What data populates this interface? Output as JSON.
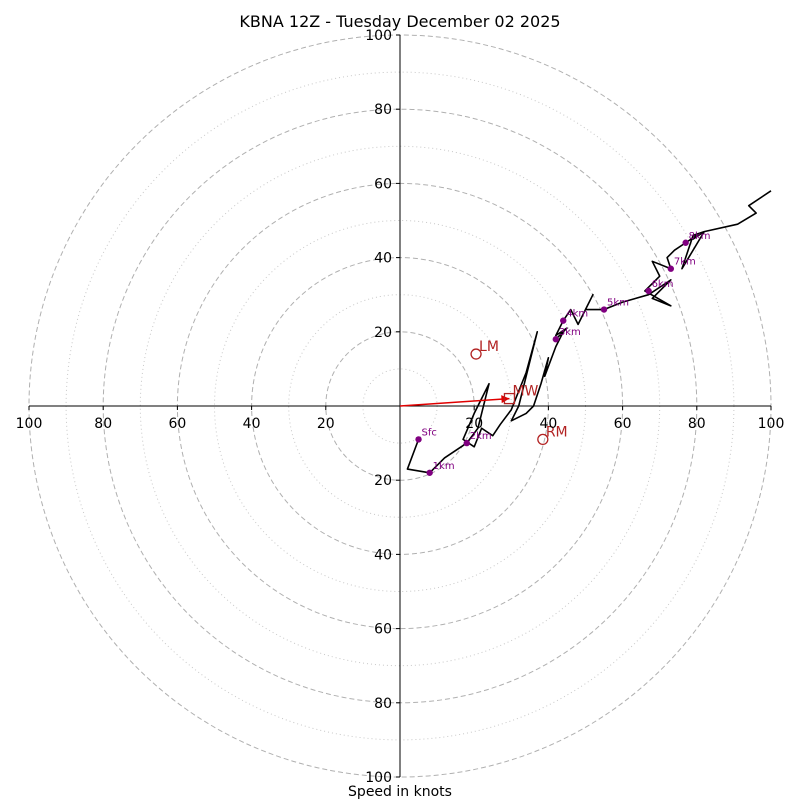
{
  "chart_data": {
    "type": "hodograph",
    "title": "KBNA 12Z - Tuesday December 02 2025",
    "xlabel": "Speed in knots",
    "units": "knots",
    "range": [
      -100,
      100
    ],
    "rings_major": [
      20,
      40,
      60,
      80,
      100
    ],
    "rings_minor": [
      10,
      30,
      50,
      70,
      90
    ],
    "x_tick_labels": [
      "100",
      "80",
      "60",
      "40",
      "20",
      "20",
      "40",
      "60",
      "80",
      "100"
    ],
    "y_tick_labels": [
      "100",
      "80",
      "60",
      "40",
      "20",
      "20",
      "40",
      "60",
      "80",
      "100"
    ],
    "colors": {
      "trace": "#000000",
      "heights": "#800080",
      "motion": "#b22222",
      "mean_wind": "#e00000",
      "grid": "#b0b0b0"
    },
    "trace": [
      [
        5,
        -9
      ],
      [
        2,
        -17
      ],
      [
        8,
        -18
      ],
      [
        12,
        -14
      ],
      [
        18,
        -10
      ],
      [
        21,
        -6
      ],
      [
        24,
        6
      ],
      [
        20,
        -2
      ],
      [
        17,
        -9
      ],
      [
        20,
        -11
      ],
      [
        22,
        -6
      ],
      [
        25,
        -8
      ],
      [
        27,
        -5
      ],
      [
        30,
        -1
      ],
      [
        34,
        9
      ],
      [
        37,
        20
      ],
      [
        32,
        0
      ],
      [
        30,
        -4
      ],
      [
        34,
        -2
      ],
      [
        36,
        0
      ],
      [
        38,
        6
      ],
      [
        40,
        13
      ],
      [
        39,
        8
      ],
      [
        42,
        16
      ],
      [
        44,
        20
      ],
      [
        42,
        18
      ],
      [
        45,
        21
      ],
      [
        42,
        19
      ],
      [
        44,
        23
      ],
      [
        46,
        26
      ],
      [
        48,
        22
      ],
      [
        52,
        30
      ],
      [
        50,
        26
      ],
      [
        55,
        26
      ],
      [
        60,
        28
      ],
      [
        67,
        30
      ],
      [
        73,
        34
      ],
      [
        68,
        29
      ],
      [
        73,
        27
      ],
      [
        66,
        31
      ],
      [
        70,
        35
      ],
      [
        68,
        39
      ],
      [
        73,
        37
      ],
      [
        72,
        40
      ],
      [
        74,
        42
      ],
      [
        77,
        44
      ],
      [
        80,
        46
      ],
      [
        79,
        45
      ],
      [
        82,
        47
      ],
      [
        79,
        46
      ],
      [
        76,
        37
      ],
      [
        82,
        47
      ],
      [
        91,
        49
      ],
      [
        96,
        52
      ],
      [
        94,
        54
      ],
      [
        100,
        58
      ]
    ],
    "heights": [
      {
        "label": "Sfc",
        "u": 5,
        "v": -9
      },
      {
        "label": "1km",
        "u": 8,
        "v": -18
      },
      {
        "label": "2km",
        "u": 18,
        "v": -10
      },
      {
        "label": "3km",
        "u": 42,
        "v": 18
      },
      {
        "label": "4km",
        "u": 44,
        "v": 23
      },
      {
        "label": "5km",
        "u": 55,
        "v": 26
      },
      {
        "label": "6km",
        "u": 67,
        "v": 31
      },
      {
        "label": "7km",
        "u": 73,
        "v": 37
      },
      {
        "label": "8km",
        "u": 77,
        "v": 44
      }
    ],
    "motions": [
      {
        "label": "LM",
        "u": 20.5,
        "v": 14,
        "shape": "circle"
      },
      {
        "label": "RM",
        "u": 38.5,
        "v": -9,
        "shape": "circle"
      },
      {
        "label": "MW",
        "u": 29.5,
        "v": 2,
        "shape": "square"
      }
    ],
    "mean_wind_vector": {
      "u": 29.5,
      "v": 2
    }
  }
}
